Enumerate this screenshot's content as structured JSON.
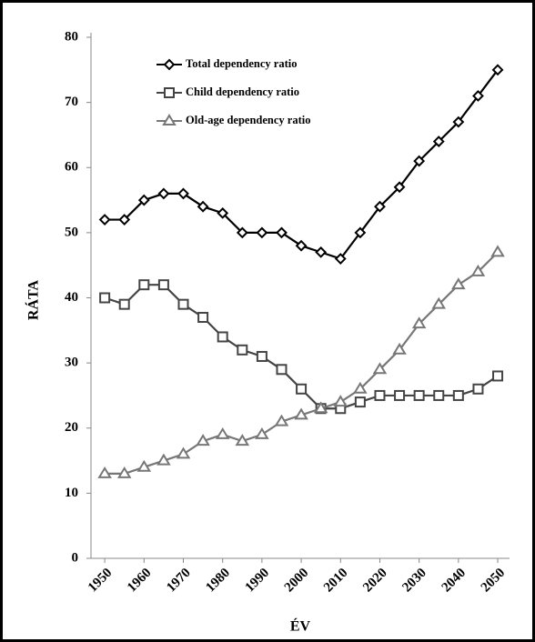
{
  "chart_data": {
    "type": "line",
    "x": [
      1950,
      1955,
      1960,
      1965,
      1970,
      1975,
      1980,
      1985,
      1990,
      1995,
      2000,
      2005,
      2010,
      2015,
      2020,
      2025,
      2030,
      2035,
      2040,
      2045,
      2050
    ],
    "series": [
      {
        "name": "Total dependency ratio",
        "color": "#000000",
        "marker": "diamond",
        "values": [
          52,
          52,
          55,
          56,
          56,
          54,
          53,
          50,
          50,
          50,
          48,
          47,
          46,
          50,
          54,
          57,
          61,
          64,
          67,
          71,
          75
        ]
      },
      {
        "name": "Child dependency ratio",
        "color": "#444444",
        "marker": "square",
        "values": [
          40,
          39,
          42,
          42,
          39,
          37,
          34,
          32,
          31,
          29,
          26,
          23,
          23,
          24,
          25,
          25,
          25,
          25,
          25,
          26,
          28
        ]
      },
      {
        "name": "Old-age dependency ratio",
        "color": "#777777",
        "marker": "triangle",
        "values": [
          13,
          13,
          14,
          15,
          16,
          18,
          19,
          18,
          19,
          21,
          22,
          23,
          24,
          26,
          29,
          32,
          36,
          39,
          42,
          44,
          47
        ]
      }
    ],
    "xlabel": "ÉV",
    "ylabel": "RÁTA",
    "xlim": [
      1946.5,
      2053
    ],
    "xticks": [
      1950,
      1960,
      1970,
      1980,
      1990,
      2000,
      2010,
      2020,
      2030,
      2040,
      2050
    ],
    "ylim": [
      0,
      80
    ],
    "yticks": [
      0,
      10,
      20,
      30,
      40,
      50,
      60,
      70,
      80
    ],
    "legend": "upper-left",
    "grid": false
  }
}
